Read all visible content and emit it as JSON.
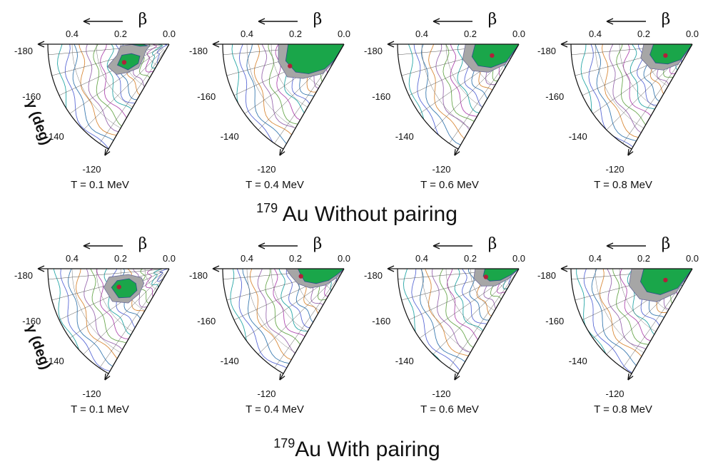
{
  "colors": {
    "min_region": "#1aa64a",
    "band_region": "#a6a6a6",
    "minimum_dot": "#b0203a",
    "axis": "#111111",
    "contours": [
      "#5b6bd6",
      "#27a6a6",
      "#b04bb0",
      "#6aa84f",
      "#9a6ab0",
      "#d98a3a",
      "#3a7ab0"
    ]
  },
  "beta_symbol": "β",
  "beta_ticks": [
    "0.4",
    "0.2",
    "0.0"
  ],
  "gamma_label": "γ (deg)",
  "gamma_ticks": [
    "-180",
    "-160",
    "-140",
    "-120"
  ],
  "rows": [
    {
      "mass_number": "179",
      "title": "Au Without pairing",
      "panels": [
        {
          "label": "T = 0.1 MeV",
          "minimum": {
            "beta": 0.2,
            "gamma": -158
          }
        },
        {
          "label": "T = 0.4 MeV",
          "minimum": {
            "beta": 0.24,
            "gamma": -158
          }
        },
        {
          "label": "T = 0.6 MeV",
          "minimum": {
            "beta": 0.12,
            "gamma": -157
          }
        },
        {
          "label": "T = 0.8 MeV",
          "minimum": {
            "beta": 0.12,
            "gamma": -157
          }
        }
      ]
    },
    {
      "mass_number": "179",
      "title": "Au With pairing",
      "panels": [
        {
          "label": "T = 0.1 MeV",
          "minimum": {
            "beta": 0.22,
            "gamma": -160
          }
        },
        {
          "label": "T = 0.4 MeV",
          "minimum": {
            "beta": 0.18,
            "gamma": -170
          }
        },
        {
          "label": "T = 0.6 MeV",
          "minimum": {
            "beta": 0.14,
            "gamma": -166
          }
        },
        {
          "label": "T = 0.8 MeV",
          "minimum": {
            "beta": 0.12,
            "gamma": -157
          }
        }
      ]
    }
  ]
}
